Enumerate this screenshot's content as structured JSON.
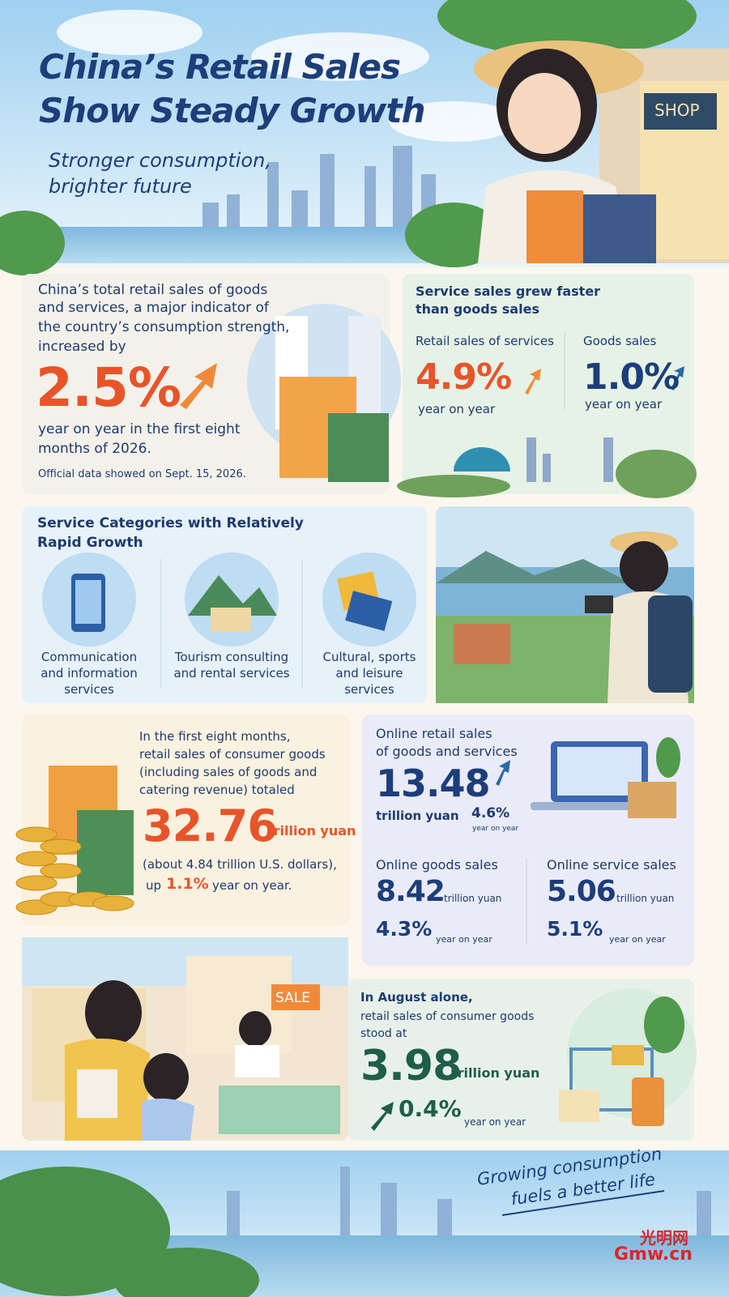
{
  "header": {
    "title_lines": [
      "China’s Retail Sales",
      "Show Steady Growth"
    ],
    "subtitle_lines": [
      "Stronger consumption,",
      "brighter future"
    ],
    "shop_sign": "SHOP"
  },
  "total": {
    "intro_lines": [
      "China’s total retail sales of goods",
      "and services, a major indicator of",
      "the country’s consumption strength,",
      "increased by"
    ],
    "figure": "2.5%",
    "after_lines": [
      "year on year in the first eight",
      "months of 2026."
    ],
    "note": "Official data showed on Sept. 15, 2026."
  },
  "services_vs_goods": {
    "heading_lines": [
      "Service sales grew faster",
      "than goods sales"
    ],
    "items": [
      {
        "label": "Retail sales of services",
        "figure": "4.9%",
        "note": "year on year"
      },
      {
        "label": "Goods sales",
        "figure": "1.0%",
        "note": "year on year"
      }
    ]
  },
  "categories": {
    "heading_lines": [
      "Service Categories with Relatively",
      "Rapid Growth"
    ],
    "items": [
      [
        "Communication",
        "and information",
        "services"
      ],
      [
        "Tourism consulting",
        "and rental services"
      ],
      [
        "Cultural, sports",
        "and leisure",
        "services"
      ]
    ]
  },
  "consumer_goods": {
    "intro_lines": [
      "In the first eight months,",
      "retail sales of consumer goods",
      "(including sales of goods and",
      "catering revenue) totaled"
    ],
    "figure": "32.76",
    "unit": "trillion yuan",
    "usd": "(about 4.84 trillion U.S. dollars),",
    "up": "up",
    "growth": "1.1%",
    "growth_note": "year on year."
  },
  "online": {
    "heading_lines": [
      "Online retail sales",
      "of goods and services"
    ],
    "figure": "13.48",
    "unit": "trillion yuan",
    "growth": "4.6%",
    "growth_note": "year on year",
    "items": [
      {
        "label": "Online goods sales",
        "figure": "8.42",
        "unit": "trillion yuan",
        "growth": "4.3%",
        "note": "year on year"
      },
      {
        "label": "Online service sales",
        "figure": "5.06",
        "unit": "trillion yuan",
        "growth": "5.1%",
        "note": "year on year"
      }
    ]
  },
  "august": {
    "intro_lines": [
      "In August alone,",
      "retail sales of consumer goods",
      "stood at"
    ],
    "figure": "3.98",
    "unit": "trillion yuan",
    "growth": "0.4%",
    "note": "year on year",
    "sale_sign": "SALE"
  },
  "footer": {
    "slogan_lines": [
      "Growing consumption",
      "fuels a better life"
    ],
    "logo_cn": "光明网",
    "logo_en": "Gmw.cn"
  }
}
